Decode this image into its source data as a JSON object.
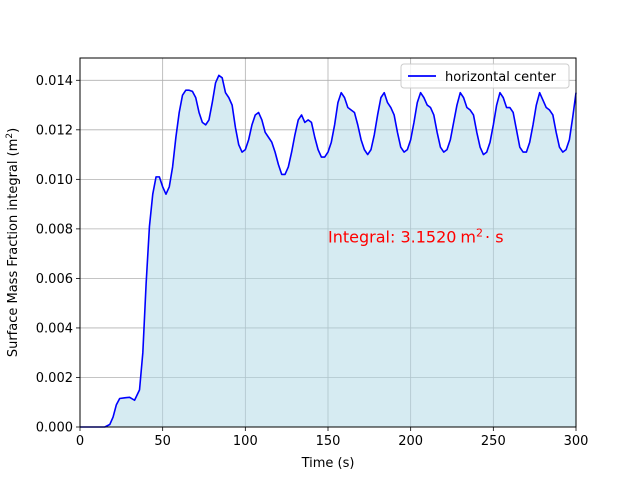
{
  "chart_data": {
    "type": "area",
    "xlabel": "Time (s)",
    "ylabel_main": "Surface Mass Fraction integral (m",
    "ylabel_sup": "2",
    "ylabel_end": ")",
    "xlim": [
      0,
      300
    ],
    "ylim": [
      0,
      0.0149
    ],
    "xticks": [
      0,
      50,
      100,
      150,
      200,
      250,
      300
    ],
    "xtick_labels": [
      "0",
      "50",
      "100",
      "150",
      "200",
      "250",
      "300"
    ],
    "yticks": [
      0,
      0.002,
      0.004,
      0.006,
      0.008,
      0.01,
      0.012,
      0.014
    ],
    "ytick_labels": [
      "0.000",
      "0.002",
      "0.004",
      "0.006",
      "0.008",
      "0.010",
      "0.012",
      "0.014"
    ],
    "grid": true,
    "legend_position": "top-right",
    "series": [
      {
        "name": "horizontal center",
        "color": "#0000ff",
        "fill_color": "#add8e6",
        "x": [
          0,
          15,
          18,
          20,
          22,
          24,
          27,
          30,
          33,
          36,
          38,
          40,
          42,
          44,
          46,
          48,
          50,
          52,
          54,
          56,
          58,
          60,
          62,
          64,
          66,
          68,
          70,
          72,
          74,
          76,
          78,
          80,
          82,
          84,
          86,
          88,
          90,
          92,
          94,
          96,
          98,
          100,
          102,
          104,
          106,
          108,
          110,
          112,
          114,
          116,
          118,
          120,
          122,
          124,
          126,
          128,
          130,
          132,
          134,
          136,
          138,
          140,
          142,
          144,
          146,
          148,
          150,
          152,
          154,
          156,
          158,
          160,
          162,
          164,
          166,
          168,
          170,
          172,
          174,
          176,
          178,
          180,
          182,
          184,
          186,
          188,
          190,
          192,
          194,
          196,
          198,
          200,
          202,
          204,
          206,
          208,
          210,
          212,
          214,
          216,
          218,
          220,
          222,
          224,
          226,
          228,
          230,
          232,
          234,
          236,
          238,
          240,
          242,
          244,
          246,
          248,
          250,
          252,
          254,
          256,
          258,
          260,
          262,
          264,
          266,
          268,
          270,
          272,
          274,
          276,
          278,
          280,
          282,
          284,
          286,
          288,
          290,
          292,
          294,
          296,
          298,
          300
        ],
        "y": [
          0,
          0,
          0.0001,
          0.0004,
          0.0009,
          0.00115,
          0.00118,
          0.0012,
          0.00108,
          0.0015,
          0.003,
          0.0058,
          0.0081,
          0.0094,
          0.0101,
          0.0101,
          0.0097,
          0.0094,
          0.0097,
          0.0105,
          0.0117,
          0.0127,
          0.0134,
          0.0136,
          0.0136,
          0.01355,
          0.0133,
          0.0127,
          0.0123,
          0.0122,
          0.0124,
          0.0131,
          0.0139,
          0.0142,
          0.0141,
          0.0135,
          0.0133,
          0.013,
          0.0121,
          0.0114,
          0.0111,
          0.0112,
          0.0116,
          0.0122,
          0.0126,
          0.0127,
          0.0124,
          0.0119,
          0.0117,
          0.0115,
          0.0111,
          0.0106,
          0.0102,
          0.0102,
          0.0105,
          0.0111,
          0.0118,
          0.0124,
          0.0126,
          0.0123,
          0.0124,
          0.0123,
          0.0117,
          0.0112,
          0.0109,
          0.0109,
          0.0111,
          0.0115,
          0.0122,
          0.0131,
          0.0135,
          0.0133,
          0.0129,
          0.0128,
          0.0127,
          0.0122,
          0.0116,
          0.0112,
          0.011,
          0.0112,
          0.0118,
          0.0126,
          0.0133,
          0.0135,
          0.0131,
          0.0129,
          0.0126,
          0.0119,
          0.0113,
          0.0111,
          0.0112,
          0.0116,
          0.0123,
          0.0131,
          0.0135,
          0.0133,
          0.013,
          0.0129,
          0.0126,
          0.0119,
          0.0113,
          0.0111,
          0.0112,
          0.0116,
          0.0123,
          0.013,
          0.0135,
          0.0133,
          0.0129,
          0.0128,
          0.0126,
          0.0119,
          0.0113,
          0.011,
          0.0111,
          0.0115,
          0.0122,
          0.013,
          0.0135,
          0.0133,
          0.0129,
          0.0129,
          0.0127,
          0.012,
          0.0113,
          0.0111,
          0.0111,
          0.0115,
          0.0122,
          0.013,
          0.0135,
          0.0132,
          0.0129,
          0.0128,
          0.0126,
          0.0119,
          0.0113,
          0.0111,
          0.0112,
          0.0116,
          0.0125,
          0.0135
        ]
      }
    ],
    "annotation": {
      "text": "Integral: 3.1520",
      "unit_main": "m",
      "unit_sup": "2",
      "unit_end": "· s",
      "color": "#ff0000",
      "x": 150,
      "y": 0.0077
    }
  }
}
